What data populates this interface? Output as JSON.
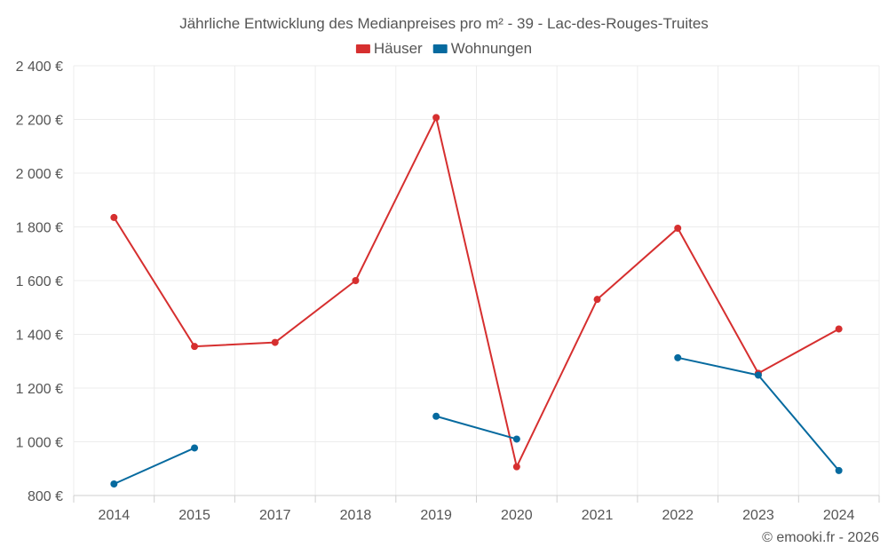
{
  "chart_data": {
    "type": "line",
    "title": "Jährliche Entwicklung des Medianpreises pro m² - 39 - Lac-des-Rouges-Truites",
    "categories": [
      "2014",
      "2015",
      "2017",
      "2018",
      "2019",
      "2020",
      "2021",
      "2022",
      "2023",
      "2024"
    ],
    "y_ticks": [
      "800 €",
      "1 000 €",
      "1 200 €",
      "1 400 €",
      "1 600 €",
      "1 800 €",
      "2 000 €",
      "2 200 €",
      "2 400 €"
    ],
    "ylim": [
      800,
      2400
    ],
    "xlabel": "",
    "ylabel": "",
    "grid": true,
    "legend_position": "top-center",
    "series": [
      {
        "name": "Häuser",
        "color": "#d62f2f",
        "values": [
          1835,
          1355,
          1370,
          1600,
          2207,
          907,
          1530,
          1795,
          1255,
          1420
        ]
      },
      {
        "name": "Wohnungen",
        "color": "#066a9f",
        "values": [
          843,
          977,
          null,
          null,
          1095,
          1010,
          null,
          1313,
          1248,
          893
        ]
      }
    ]
  },
  "credit": "© emooki.fr - 2026"
}
